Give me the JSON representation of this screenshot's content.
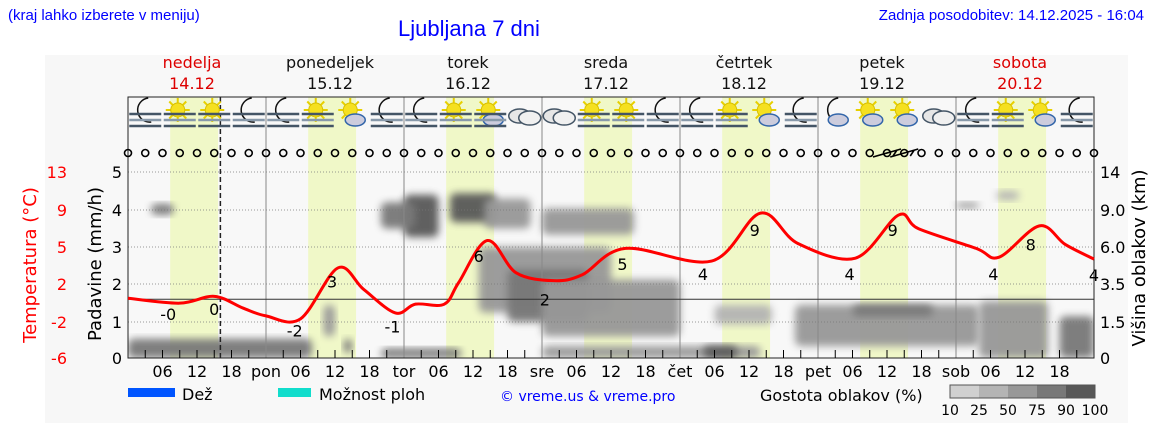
{
  "header": {
    "hint": "(kraj lahko izberete v meniju)",
    "title": "Ljubljana 7 dni",
    "updated": "Zadnja posodobitev: 14.12.2025 - 16:04"
  },
  "colors": {
    "temperature": "#ff0000",
    "weekend_day": "#dd0000",
    "daylight_band": "#f0f8c8",
    "rain": "#0055ff",
    "showers": "#11ddcc",
    "link": "#0000ff"
  },
  "days": [
    {
      "name": "nedelja",
      "date": "14.12",
      "weekend": true,
      "abbr": "",
      "icons": [
        "moon-fog",
        "sun-fog",
        "sun-fog",
        "moon-fog"
      ]
    },
    {
      "name": "ponedeljek",
      "date": "15.12",
      "weekend": false,
      "abbr": "pon",
      "icons": [
        "moon-fog",
        "sun-fog",
        "sun-cloud",
        "moon-fog"
      ]
    },
    {
      "name": "torek",
      "date": "16.12",
      "weekend": false,
      "abbr": "tor",
      "icons": [
        "moon-fog",
        "sun-fog",
        "sun-cloud-fog",
        "clouds"
      ]
    },
    {
      "name": "sreda",
      "date": "17.12",
      "weekend": false,
      "abbr": "sre",
      "icons": [
        "clouds",
        "sun-fog",
        "sun-fog",
        "moon-fog"
      ]
    },
    {
      "name": "četrtek",
      "date": "18.12",
      "weekend": false,
      "abbr": "čet",
      "icons": [
        "moon-fog",
        "sun-fog",
        "sun-cloud",
        "moon-fog"
      ]
    },
    {
      "name": "petek",
      "date": "19.12",
      "weekend": false,
      "abbr": "pet",
      "icons": [
        "moon-cloud",
        "sun-cloud",
        "sun-cloud",
        "clouds"
      ]
    },
    {
      "name": "sobota",
      "date": "20.12",
      "weekend": true,
      "abbr": "sob",
      "icons": [
        "moon-fog",
        "sun-fog",
        "sun-cloud",
        "moon-fog"
      ]
    }
  ],
  "wind": {
    "calm_symbol": "circle",
    "barbs_at": [
      "19.12 12:00",
      "19.12 15:00"
    ]
  },
  "chart_data": {
    "type": "line",
    "now": "14.12 16:04",
    "x_range": [
      "14.12 00:00",
      "21.12 00:00"
    ],
    "x_tick_hours": [
      "06",
      "12",
      "18"
    ],
    "daylight": [
      "07:20",
      "15:40"
    ],
    "grid": true,
    "axes": {
      "temperature": {
        "label": "Temperatura (°C)",
        "ticks": [
          13,
          9,
          5,
          2,
          -2,
          -6
        ],
        "range": [
          -6,
          13
        ]
      },
      "precipitation": {
        "label": "Padavine (mm/h)",
        "ticks": [
          5,
          4,
          3,
          2,
          1,
          0
        ],
        "range": [
          0,
          5
        ]
      },
      "cloud_height": {
        "label": "Višina oblakov (km)",
        "ticks": [
          14,
          9.0,
          6.0,
          3.5,
          1.5,
          0
        ],
        "tick_labels": [
          "14",
          "9.0",
          "6.0",
          "3.5",
          "1.5",
          "0"
        ]
      }
    },
    "zero_line_temperature": 0,
    "series": [
      {
        "kind": "temperature",
        "points": [
          [
            "14.12 00:00",
            0.1
          ],
          [
            "14.12 09:00",
            -0.4
          ],
          [
            "14.12 15:00",
            0.3
          ],
          [
            "14.12 20:00",
            -0.9
          ],
          [
            "15.12 00:00",
            -1.7
          ],
          [
            "15.12 06:00",
            -2.0
          ],
          [
            "15.12 12:30",
            3.2
          ],
          [
            "15.12 17:00",
            1.0
          ],
          [
            "15.12 22:30",
            -1.4
          ],
          [
            "16.12 02:00",
            -0.5
          ],
          [
            "16.12 07:00",
            -0.5
          ],
          [
            "16.12 09:30",
            1.7
          ],
          [
            "16.12 14:30",
            6.0
          ],
          [
            "16.12 19:30",
            2.7
          ],
          [
            "17.12 02:00",
            1.9
          ],
          [
            "17.12 07:00",
            2.5
          ],
          [
            "17.12 14:30",
            5.2
          ],
          [
            "18.12 05:30",
            3.9
          ],
          [
            "18.12 14:00",
            8.8
          ],
          [
            "18.12 20:30",
            5.7
          ],
          [
            "19.12 06:30",
            4.2
          ],
          [
            "19.12 14:00",
            8.6
          ],
          [
            "19.12 17:30",
            7.2
          ],
          [
            "20.12 03:30",
            5.2
          ],
          [
            "20.12 07:30",
            4.3
          ],
          [
            "20.12 14:30",
            7.5
          ],
          [
            "20.12 19:00",
            5.6
          ],
          [
            "21.12 00:00",
            4.1
          ]
        ]
      },
      {
        "kind": "precipitation",
        "points": []
      }
    ],
    "temperature_labels": [
      {
        "at": "14.12 07:00",
        "temp": -1.5,
        "text": "-0"
      },
      {
        "at": "14.12 15:00",
        "temp": -1.0,
        "text": "0"
      },
      {
        "at": "15.12 05:00",
        "temp": -3.2,
        "text": "-2"
      },
      {
        "at": "15.12 11:30",
        "temp": 1.8,
        "text": "3"
      },
      {
        "at": "15.12 22:00",
        "temp": -2.8,
        "text": "-1"
      },
      {
        "at": "16.12 13:00",
        "temp": 4.4,
        "text": "6"
      },
      {
        "at": "17.12 00:30",
        "temp": 0.0,
        "text": "2"
      },
      {
        "at": "17.12 14:00",
        "temp": 3.6,
        "text": "5"
      },
      {
        "at": "18.12 04:00",
        "temp": 2.6,
        "text": "4"
      },
      {
        "at": "18.12 13:00",
        "temp": 7.1,
        "text": "9"
      },
      {
        "at": "19.12 05:30",
        "temp": 2.6,
        "text": "4"
      },
      {
        "at": "19.12 13:00",
        "temp": 7.1,
        "text": "9"
      },
      {
        "at": "20.12 06:30",
        "temp": 2.6,
        "text": "4"
      },
      {
        "at": "20.12 13:00",
        "temp": 5.6,
        "text": "8"
      },
      {
        "at": "21.12 00:00",
        "temp": 2.5,
        "text": "4"
      }
    ],
    "cloud_density": [
      {
        "from": "14.12 00:00",
        "to": "15.12 08:00",
        "km": [
          0,
          0.8
        ],
        "pct": 75
      },
      {
        "from": "14.12 04:00",
        "to": "14.12 08:00",
        "km": [
          8.6,
          9.8
        ],
        "pct": 75
      },
      {
        "from": "15.12 10:00",
        "to": "15.12 12:00",
        "km": [
          0.9,
          2.4
        ],
        "pct": 50
      },
      {
        "from": "15.12 13:30",
        "to": "15.12 15:00",
        "km": [
          0.2,
          0.8
        ],
        "pct": 75
      },
      {
        "from": "15.12 20:00",
        "to": "16.12 10:00",
        "km": [
          0,
          0.4
        ],
        "pct": 75
      },
      {
        "from": "16.12 00:00",
        "to": "16.12 06:00",
        "km": [
          6.8,
          11
        ],
        "pct": 90
      },
      {
        "from": "15.12 20:00",
        "to": "16.12 02:00",
        "km": [
          7.5,
          10
        ],
        "pct": 75
      },
      {
        "from": "16.12 08:00",
        "to": "16.12 16:00",
        "km": [
          8,
          11.2
        ],
        "pct": 90
      },
      {
        "from": "16.12 14:00",
        "to": "16.12 22:00",
        "km": [
          7.5,
          10.5
        ],
        "pct": 50
      },
      {
        "from": "16.12 13:00",
        "to": "17.12 12:00",
        "km": [
          2.0,
          6.0
        ],
        "pct": 50
      },
      {
        "from": "16.12 18:00",
        "to": "17.12 08:00",
        "km": [
          1.5,
          4.5
        ],
        "pct": 75
      },
      {
        "from": "17.12 00:00",
        "to": "17.12 16:00",
        "km": [
          7.0,
          9.2
        ],
        "pct": 50
      },
      {
        "from": "17.12 00:00",
        "to": "18.12 00:00",
        "km": [
          0.9,
          3.8
        ],
        "pct": 50
      },
      {
        "from": "17.12 00:00",
        "to": "18.12 14:00",
        "km": [
          0,
          0.5
        ],
        "pct": 50
      },
      {
        "from": "18.12 04:00",
        "to": "18.12 10:00",
        "km": [
          0,
          0.5
        ],
        "pct": 90
      },
      {
        "from": "18.12 06:00",
        "to": "18.12 16:00",
        "km": [
          1.4,
          2.4
        ],
        "pct": 25
      },
      {
        "from": "18.12 20:00",
        "to": "20.12 04:00",
        "km": [
          0.5,
          2.4
        ],
        "pct": 50
      },
      {
        "from": "19.12 06:00",
        "to": "19.12 20:00",
        "km": [
          1.8,
          2.4
        ],
        "pct": 75
      },
      {
        "from": "20.12 00:00",
        "to": "20.12 04:00",
        "km": [
          9.2,
          10
        ],
        "pct": 50
      },
      {
        "from": "20.12 07:00",
        "to": "20.12 11:00",
        "km": [
          10.3,
          11.5
        ],
        "pct": 25
      },
      {
        "from": "20.12 04:00",
        "to": "20.12 16:00",
        "km": [
          0,
          2.6
        ],
        "pct": 50
      },
      {
        "from": "20.12 18:00",
        "to": "21.12 00:00",
        "km": [
          0,
          1.8
        ],
        "pct": 75
      }
    ]
  },
  "legend": {
    "rain": "Dež",
    "showers": "Možnost ploh",
    "copyright": "© vreme.us & vreme.pro",
    "density_title": "Gostota oblakov (%)",
    "density_steps": [
      "10",
      "25",
      "50",
      "75",
      "90",
      "100"
    ],
    "density_colors": [
      "#d0d0d0",
      "#b4b4b4",
      "#989898",
      "#787878",
      "#585858"
    ]
  }
}
